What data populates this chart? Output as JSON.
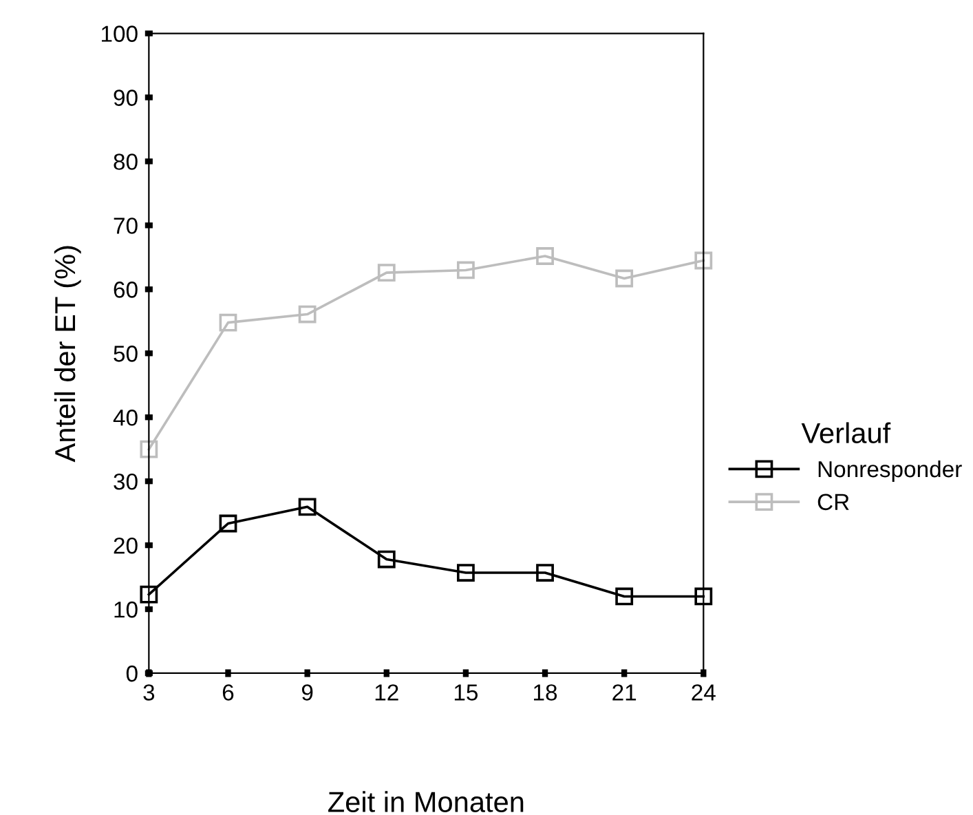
{
  "chart_data": {
    "type": "line",
    "xlabel": "Zeit in Monaten",
    "ylabel": "Anteil der ET (%)",
    "legend_title": "Verlauf",
    "x": [
      3,
      6,
      9,
      12,
      15,
      18,
      21,
      24
    ],
    "series": [
      {
        "name": "Nonresponder",
        "color": "#000000",
        "values": [
          12.3,
          23.4,
          26.0,
          17.8,
          15.7,
          15.7,
          12.0,
          12.0
        ]
      },
      {
        "name": "CR",
        "color": "#bdbdbd",
        "values": [
          35.0,
          54.8,
          56.1,
          62.6,
          63.0,
          65.2,
          61.7,
          64.5
        ]
      }
    ],
    "xlim": [
      3,
      24
    ],
    "xticks": [
      3,
      6,
      9,
      12,
      15,
      18,
      21,
      24
    ],
    "ylim": [
      0,
      100
    ],
    "yticks": [
      0,
      10,
      20,
      30,
      40,
      50,
      60,
      70,
      80,
      90,
      100
    ],
    "marker": "square",
    "line_style": "solid",
    "grid": false,
    "legend": "right"
  }
}
